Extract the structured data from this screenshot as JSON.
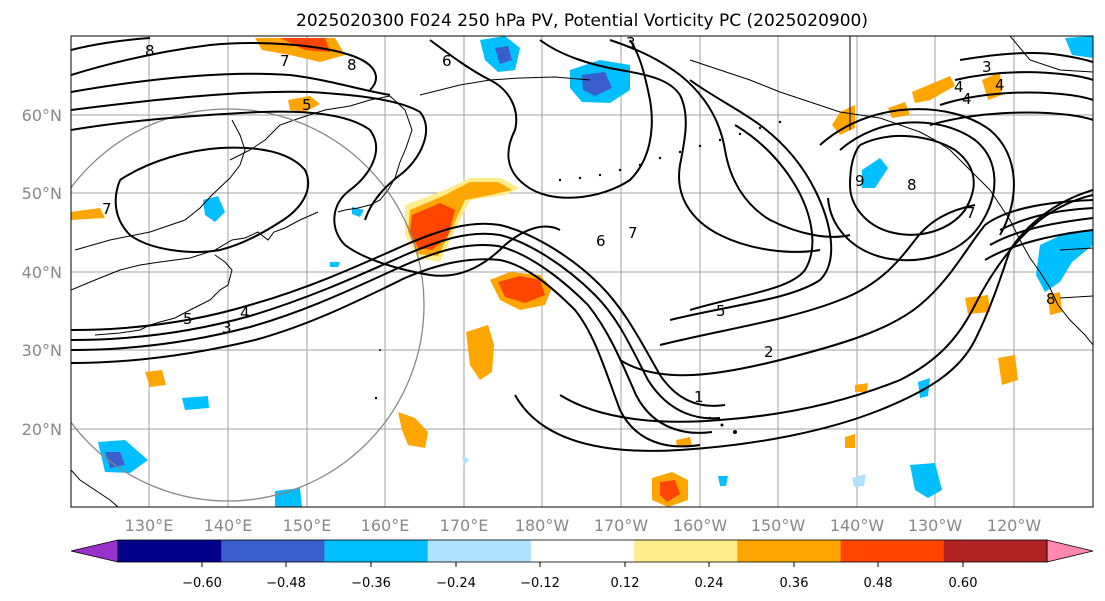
{
  "title": "2025020300 F024 250 hPa PV, Potential Vorticity PC (2025020900)",
  "latitude_labels": [
    "60°N",
    "50°N",
    "40°N",
    "30°N",
    "20°N"
  ],
  "longitude_labels": [
    "130°E",
    "140°E",
    "150°E",
    "160°E",
    "170°E",
    "180°W",
    "170°W",
    "160°W",
    "150°W",
    "140°W",
    "130°W",
    "120°W"
  ],
  "colorbar": {
    "colors": [
      "#9932CC",
      "#00008B",
      "#3A5FCD",
      "#00BFFF",
      "#B0E2FF",
      "#FFFFFF",
      "#FFEC8B",
      "#FFA500",
      "#FF4500",
      "#B22222",
      "#FF88B0"
    ],
    "tick_labels": [
      "−0.60",
      "−0.48",
      "−0.36",
      "−0.24",
      "−0.12",
      "0.12",
      "0.24",
      "0.36",
      "0.48",
      "0.60"
    ]
  },
  "contour_labels": [
    "8",
    "7",
    "8",
    "6",
    "5",
    "3",
    "7",
    "3",
    "4",
    "5",
    "2",
    "1",
    "7",
    "6",
    "5",
    "4",
    "4",
    "9",
    "8",
    "7",
    "8",
    "3",
    "4"
  ],
  "colors": {
    "positive_high": "#FF4500",
    "positive_mid": "#FFA500",
    "positive_low": "#FFEC8B",
    "negative_low": "#B0E2FF",
    "negative_mid": "#00BFFF",
    "negative_high": "#3A5FCD",
    "negative_extreme": "#9932CC",
    "contour": "#000000",
    "grid": "#999999",
    "label": "#888888"
  }
}
